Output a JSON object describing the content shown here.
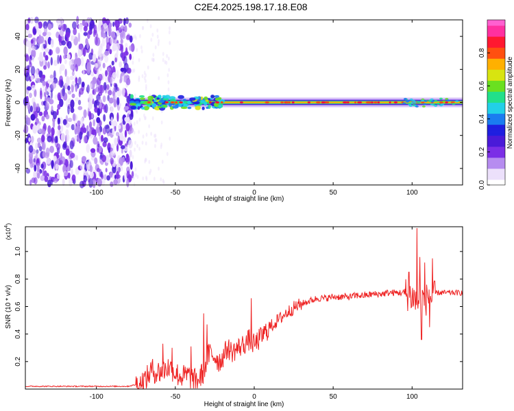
{
  "title": "C2E4.2025.198.17.18.E08",
  "chart_data": [
    {
      "type": "heatmap",
      "xlabel": "Height of straight line (km)",
      "ylabel": "Frequency (Hz)",
      "xlim": [
        -145,
        132
      ],
      "ylim": [
        -50,
        50
      ],
      "xticks": [
        -100,
        -50,
        0,
        50,
        100
      ],
      "yticks": [
        -40,
        -20,
        0,
        20,
        40
      ],
      "colorbar": {
        "label": "Normalized spectral amplitude",
        "range": [
          0.0,
          1.0
        ],
        "ticks": [
          "0.0",
          "0.2",
          "0.4",
          "0.6",
          "0.8"
        ],
        "colormap": [
          "#ffffff",
          "#ece0fb",
          "#b68cf0",
          "#7b2ee6",
          "#4a1ad8",
          "#1f1fe0",
          "#1a7cf0",
          "#22d0e8",
          "#22e08a",
          "#6ae020",
          "#d8e410",
          "#ffb000",
          "#ff5010",
          "#ff1830",
          "#ff30a0",
          "#ff60d0"
        ]
      },
      "noise_floor_end_km": -77,
      "signal_start_km": -78,
      "signal_center_hz": 0
    },
    {
      "type": "line",
      "xlabel": "Height of straight line (km)",
      "ylabel": "SNR (10 * v/v)",
      "y_multiplier": "(x10",
      "y_multiplier_exp": "4",
      "xlim": [
        -145,
        132
      ],
      "ylim": [
        0,
        1.18
      ],
      "xticks": [
        -100,
        -50,
        0,
        50,
        100
      ],
      "yticks": [
        "0.2",
        "0.4",
        "0.6",
        "0.8",
        "1.0"
      ],
      "series": [
        {
          "color": "#ee2222",
          "x": [
            -145,
            -80,
            -72,
            -68,
            -65,
            -62,
            -58,
            -55,
            -52,
            -48,
            -45,
            -42,
            -38,
            -35,
            -32,
            -30,
            -28,
            -25,
            -22,
            -20,
            -17,
            -14,
            -10,
            -6,
            -3,
            0,
            3,
            6,
            10,
            15,
            20,
            25,
            30,
            35,
            40,
            45,
            50,
            55,
            60,
            65,
            70,
            75,
            80,
            85,
            90,
            95,
            98,
            101,
            103,
            105,
            107,
            109,
            111,
            113,
            115,
            118,
            122,
            126,
            132
          ],
          "values": [
            0.02,
            0.02,
            0.04,
            0.08,
            0.14,
            0.12,
            0.13,
            0.16,
            0.14,
            0.1,
            0.09,
            0.1,
            0.06,
            0.07,
            0.13,
            0.22,
            0.26,
            0.24,
            0.2,
            0.23,
            0.3,
            0.27,
            0.3,
            0.33,
            0.36,
            0.32,
            0.36,
            0.4,
            0.45,
            0.5,
            0.55,
            0.59,
            0.62,
            0.64,
            0.66,
            0.66,
            0.67,
            0.67,
            0.67,
            0.68,
            0.68,
            0.69,
            0.69,
            0.7,
            0.7,
            0.7,
            0.68,
            0.67,
            0.62,
            0.66,
            0.68,
            0.65,
            0.69,
            0.63,
            0.7,
            0.7,
            0.7,
            0.7,
            0.7
          ],
          "peaks": [
            {
              "x": -58,
              "y": 0.33
            },
            {
              "x": -52,
              "y": 0.3
            },
            {
              "x": -40,
              "y": 0.31
            },
            {
              "x": -32,
              "y": 0.55
            },
            {
              "x": -30,
              "y": 0.47
            },
            {
              "x": -2,
              "y": 0.66
            },
            {
              "x": 98,
              "y": 0.85
            },
            {
              "x": 103,
              "y": 1.17
            },
            {
              "x": 105,
              "y": 0.96
            },
            {
              "x": 106,
              "y": 0.36
            },
            {
              "x": 108,
              "y": 0.92
            },
            {
              "x": 111,
              "y": 0.45
            },
            {
              "x": 113,
              "y": 0.95
            }
          ]
        }
      ]
    }
  ]
}
